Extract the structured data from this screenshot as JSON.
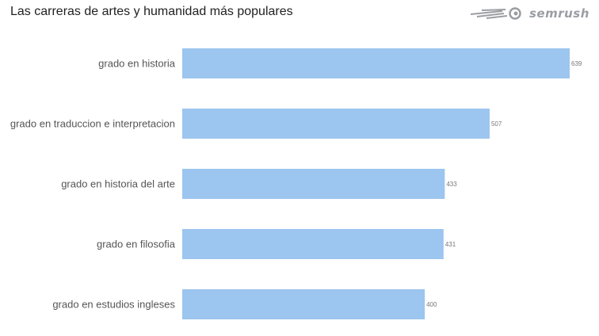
{
  "brand": {
    "name": "semrush",
    "color": "#9a9ea3"
  },
  "chart_data": {
    "type": "bar",
    "orientation": "horizontal",
    "title": "Las carreras de artes y humanidad más populares",
    "categories": [
      "grado en historia",
      "grado en traduccion e interpretacion",
      "grado en historia del arte",
      "grado en filosofia",
      "grado en estudios ingleses"
    ],
    "values": [
      639,
      507,
      433,
      431,
      400
    ],
    "xlim": [
      0,
      639
    ],
    "grid": false,
    "data_labels": true,
    "bar_color": "#9cc5ef"
  }
}
